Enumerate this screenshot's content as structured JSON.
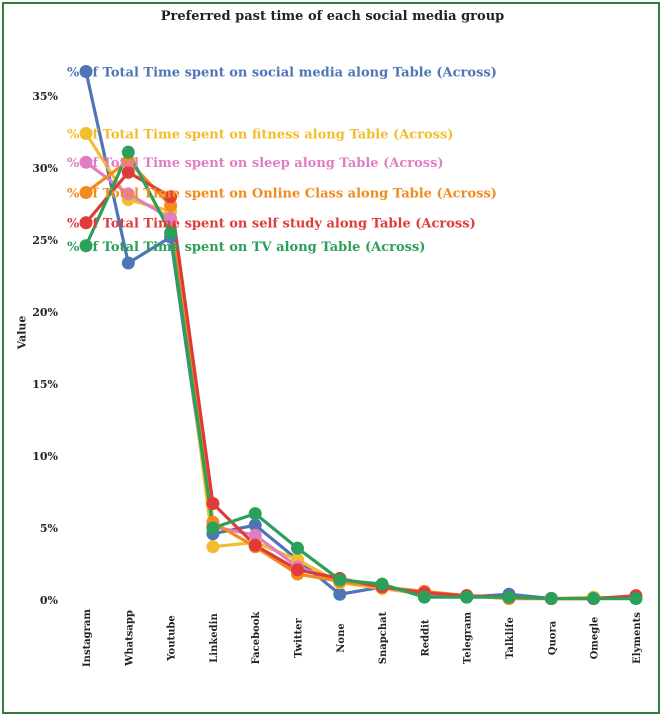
{
  "chart_data": {
    "type": "line",
    "title": "Preferred past time of each social media group",
    "xlabel": "",
    "ylabel": "Value",
    "ylim": [
      0,
      0.38
    ],
    "yticks": [
      "0%",
      "5%",
      "10%",
      "15%",
      "20%",
      "25%",
      "30%",
      "35%"
    ],
    "categories": [
      "Instagram",
      "Whatsapp",
      "Youtube",
      "Linkedin",
      "Facebook",
      "Twitter",
      "None",
      "Snapchat",
      "Reddit",
      "Telegram",
      "Talklife",
      "Quora",
      "Omegle",
      "Elyments"
    ],
    "series": [
      {
        "name": "% of Total Time spent on social media along Table (Across)",
        "color": "#4f75b7",
        "values": [
          0.367,
          0.234,
          0.252,
          0.046,
          0.052,
          0.028,
          0.004,
          0.009,
          0.005,
          0.002,
          0.004,
          0.001,
          0.001,
          0.001
        ]
      },
      {
        "name": "% of Total Time spent on fitness along Table (Across)",
        "color": "#f2be2d",
        "values": [
          0.324,
          0.278,
          0.27,
          0.037,
          0.04,
          0.028,
          0.012,
          0.008,
          0.004,
          0.003,
          0.001,
          0.001,
          0.002,
          0.001
        ]
      },
      {
        "name": "% of Total Time spent on sleep along Table (Across)",
        "color": "#e17ec2",
        "values": [
          0.304,
          0.282,
          0.265,
          0.051,
          0.045,
          0.023,
          0.013,
          0.009,
          0.004,
          0.003,
          0.001,
          0.001,
          0.001,
          0.002
        ]
      },
      {
        "name": "% of Total Time spent on Online Class along Table (Across)",
        "color": "#f28a1e",
        "values": [
          0.283,
          0.305,
          0.274,
          0.054,
          0.037,
          0.018,
          0.013,
          0.009,
          0.006,
          0.003,
          0.001,
          0.001,
          0.001,
          0.002
        ]
      },
      {
        "name": "% of Total Time spent on self study along Table (Across)",
        "color": "#e03b3b",
        "values": [
          0.262,
          0.297,
          0.28,
          0.067,
          0.038,
          0.021,
          0.015,
          0.009,
          0.005,
          0.003,
          0.002,
          0.001,
          0.001,
          0.003
        ]
      },
      {
        "name": "% of Total Time spent on TV along Table (Across)",
        "color": "#2aa05a",
        "values": [
          0.246,
          0.311,
          0.255,
          0.05,
          0.06,
          0.036,
          0.014,
          0.011,
          0.002,
          0.002,
          0.002,
          0.001,
          0.001,
          0.001
        ]
      }
    ]
  }
}
